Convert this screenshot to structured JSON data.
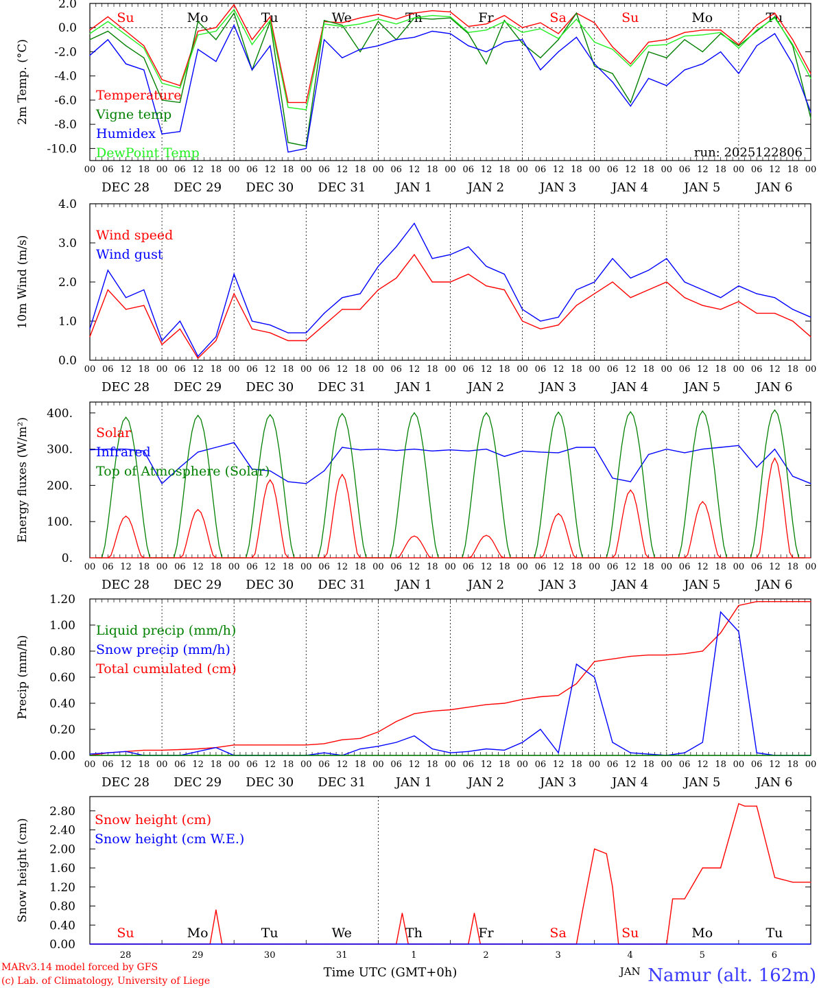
{
  "colors": {
    "red": "#ff0000",
    "green": "#008000",
    "blue": "#0000ff",
    "lightgreen": "#22ee22",
    "darkblue": "#0000b4",
    "titleblue": "#3a3aff"
  },
  "hour_ticks": [
    "00",
    "06",
    "12",
    "18"
  ],
  "end_tick": "00",
  "date_labels": [
    "DEC 28",
    "DEC 29",
    "DEC 30",
    "DEC 31",
    "JAN  1",
    "JAN  2",
    "JAN  3",
    "JAN  4",
    "JAN  5",
    "JAN  6"
  ],
  "bottom_days": [
    "28",
    "29",
    "30",
    "31",
    "1",
    "2",
    "3",
    "4",
    "5",
    "6"
  ],
  "bottom_month": "JAN",
  "weekdays": [
    {
      "label": "Su",
      "color": "red"
    },
    {
      "label": "Mo",
      "color": "black"
    },
    {
      "label": "Tu",
      "color": "black"
    },
    {
      "label": "We",
      "color": "black"
    },
    {
      "label": "Th",
      "color": "black"
    },
    {
      "label": "Fr",
      "color": "black"
    },
    {
      "label": "Sa",
      "color": "red"
    },
    {
      "label": "Su",
      "color": "red"
    },
    {
      "label": "Mo",
      "color": "black"
    },
    {
      "label": "Tu",
      "color": "black"
    }
  ],
  "footer": {
    "xlabel": "Time UTC (GMT+0h)",
    "credit1": "MARv3.14 model forced by GFS",
    "credit2": "(c) Lab. of Climatology, University of Liege",
    "station": "Namur (alt. 162m)"
  },
  "chart_data": [
    {
      "type": "line",
      "ylabel": "2m Temp. (°C)",
      "ylim": [
        -11,
        2
      ],
      "yticks": [
        "2.0",
        "0.0",
        "-2.0",
        "-4.0",
        "-6.0",
        "-8.0",
        "-10.0"
      ],
      "ytick_values": [
        2,
        0,
        -2,
        -4,
        -6,
        -8,
        -10
      ],
      "zero_line": true,
      "annotation": "run: 2025122806",
      "legend": [
        {
          "name": "Temperature",
          "color": "red"
        },
        {
          "name": "Vigne temp",
          "color": "green"
        },
        {
          "name": "Humidex",
          "color": "blue"
        },
        {
          "name": "DewPoint Temp",
          "color": "lightgreen"
        }
      ],
      "x_hours": [
        0,
        6,
        12,
        18,
        24,
        30,
        36,
        42,
        48,
        54,
        60,
        66,
        72,
        78,
        84,
        90,
        96,
        102,
        108,
        114,
        120,
        126,
        132,
        138,
        144,
        150,
        156,
        162,
        168,
        174,
        180,
        186,
        192,
        198,
        204,
        210,
        216,
        222,
        228,
        234,
        240
      ],
      "series": [
        {
          "name": "Temperature",
          "color": "red",
          "values": [
            -0.2,
            0.9,
            -0.3,
            -1.5,
            -4.3,
            -4.8,
            -0.3,
            0.0,
            1.9,
            -1.0,
            0.9,
            -6.2,
            -6.2,
            0.5,
            0.4,
            0.8,
            1.1,
            0.7,
            1.2,
            1.4,
            1.3,
            0.1,
            0.3,
            1.0,
            0.0,
            0.4,
            -0.5,
            1.2,
            0.4,
            -1.6,
            -3.0,
            -1.2,
            -1.0,
            -0.4,
            -0.2,
            -0.2,
            -1.4,
            0.2,
            1.2,
            -1.0,
            -3.8
          ]
        },
        {
          "name": "Vigne temp",
          "color": "green",
          "values": [
            -1.0,
            -0.3,
            -1.5,
            -2.5,
            -6.0,
            -6.2,
            0.5,
            -1.0,
            1.2,
            -3.5,
            0.5,
            -9.5,
            -9.8,
            0.6,
            0.2,
            -2.0,
            0.5,
            -1.0,
            0.8,
            0.7,
            0.8,
            -0.5,
            -3.0,
            0.6,
            -1.3,
            -2.5,
            -1.0,
            1.2,
            -3.2,
            -3.8,
            -6.2,
            -2.0,
            -2.5,
            -1.0,
            -2.0,
            -0.5,
            -1.5,
            -0.3,
            0.9,
            -1.5,
            -7.5
          ]
        },
        {
          "name": "Humidex",
          "color": "blue",
          "values": [
            -2.3,
            -1.0,
            -3.0,
            -3.5,
            -8.8,
            -8.6,
            -1.8,
            -2.8,
            0.2,
            -3.5,
            -1.5,
            -10.3,
            -10.0,
            -1.0,
            -2.5,
            -1.8,
            -1.5,
            -1.0,
            -0.8,
            -0.3,
            -0.5,
            -1.5,
            -2.0,
            -1.2,
            -1.0,
            -3.5,
            -2.0,
            -0.8,
            -3.0,
            -4.5,
            -6.5,
            -4.2,
            -4.8,
            -3.5,
            -3.0,
            -2.0,
            -3.8,
            -1.5,
            -0.5,
            -3.0,
            -7.0
          ]
        },
        {
          "name": "DewPoint Temp",
          "color": "lightgreen",
          "values": [
            -0.5,
            0.5,
            -0.6,
            -1.7,
            -4.6,
            -5.0,
            -0.6,
            -0.3,
            1.5,
            -1.4,
            0.6,
            -6.6,
            -6.8,
            0.3,
            0.1,
            0.3,
            0.7,
            0.3,
            0.8,
            1.0,
            0.9,
            -0.4,
            -0.2,
            0.5,
            -0.4,
            -0.1,
            -0.9,
            0.7,
            -1.2,
            -1.8,
            -3.2,
            -1.5,
            -1.4,
            -0.7,
            -0.6,
            -0.4,
            -1.7,
            -0.2,
            0.8,
            -1.4,
            -4.2
          ]
        }
      ]
    },
    {
      "type": "line",
      "ylabel": "10m Wind (m/s)",
      "ylim": [
        0,
        4
      ],
      "yticks": [
        "4.0",
        "3.0",
        "2.0",
        "1.0",
        "0.0"
      ],
      "ytick_values": [
        4,
        3,
        2,
        1,
        0
      ],
      "legend": [
        {
          "name": "Wind speed",
          "color": "red"
        },
        {
          "name": "Wind gust",
          "color": "blue"
        }
      ],
      "x_hours": [
        0,
        6,
        12,
        18,
        24,
        30,
        36,
        42,
        48,
        54,
        60,
        66,
        72,
        78,
        84,
        90,
        96,
        102,
        108,
        114,
        120,
        126,
        132,
        138,
        144,
        150,
        156,
        162,
        168,
        174,
        180,
        186,
        192,
        198,
        204,
        210,
        216,
        222,
        228,
        234,
        240
      ],
      "series": [
        {
          "name": "Wind speed",
          "color": "red",
          "values": [
            0.6,
            1.8,
            1.3,
            1.4,
            0.4,
            0.8,
            0.05,
            0.5,
            1.7,
            0.8,
            0.7,
            0.5,
            0.5,
            0.9,
            1.3,
            1.3,
            1.8,
            2.1,
            2.7,
            2.0,
            2.0,
            2.2,
            1.9,
            1.8,
            1.0,
            0.8,
            0.9,
            1.4,
            1.7,
            2.0,
            1.6,
            1.8,
            2.0,
            1.6,
            1.4,
            1.3,
            1.5,
            1.2,
            1.2,
            1.0,
            0.6
          ]
        },
        {
          "name": "Wind gust",
          "color": "blue",
          "values": [
            0.8,
            2.3,
            1.6,
            1.8,
            0.5,
            1.0,
            0.1,
            0.6,
            2.2,
            1.0,
            0.9,
            0.7,
            0.7,
            1.2,
            1.6,
            1.7,
            2.4,
            2.9,
            3.5,
            2.6,
            2.7,
            2.9,
            2.4,
            2.2,
            1.3,
            1.0,
            1.1,
            1.8,
            2.0,
            2.6,
            2.1,
            2.3,
            2.6,
            2.0,
            1.8,
            1.6,
            1.9,
            1.7,
            1.6,
            1.3,
            1.1
          ]
        }
      ]
    },
    {
      "type": "line",
      "ylabel": "Energy fluxes (W/m²)",
      "ylim": [
        0,
        430
      ],
      "yticks": [
        "400.",
        "300.",
        "200.",
        "100.",
        "0."
      ],
      "ytick_values": [
        400,
        300,
        200,
        100,
        0
      ],
      "legend": [
        {
          "name": "Solar",
          "color": "red"
        },
        {
          "name": "Infrared",
          "color": "blue"
        },
        {
          "name": "Top of Atmosphere (Solar)",
          "color": "green"
        }
      ],
      "daily_peaks": {
        "toa": [
          388,
          393,
          395,
          398,
          400,
          400,
          402,
          403,
          405,
          408
        ],
        "solar": [
          115,
          133,
          215,
          230,
          60,
          62,
          122,
          187,
          155,
          275
        ]
      },
      "x_hours": [
        0,
        6,
        12,
        18,
        24,
        30,
        36,
        42,
        48,
        54,
        60,
        66,
        72,
        78,
        84,
        90,
        96,
        102,
        108,
        114,
        120,
        126,
        132,
        138,
        144,
        150,
        156,
        162,
        168,
        174,
        180,
        186,
        192,
        198,
        204,
        210,
        216,
        222,
        228,
        234,
        240
      ],
      "series": [
        {
          "name": "Infrared",
          "color": "blue",
          "values": [
            298,
            300,
            300,
            295,
            205,
            250,
            292,
            305,
            318,
            245,
            240,
            210,
            205,
            240,
            305,
            298,
            300,
            296,
            300,
            295,
            298,
            295,
            300,
            280,
            295,
            292,
            290,
            305,
            305,
            220,
            210,
            285,
            300,
            290,
            300,
            305,
            310,
            250,
            300,
            225,
            205
          ]
        }
      ]
    },
    {
      "type": "line",
      "ylabel": "Precip (mm/h)",
      "ylim": [
        0,
        1.2
      ],
      "yticks": [
        "1.20",
        "1.00",
        "0.80",
        "0.60",
        "0.40",
        "0.20",
        "0.00"
      ],
      "ytick_values": [
        1.2,
        1.0,
        0.8,
        0.6,
        0.4,
        0.2,
        0.0
      ],
      "legend": [
        {
          "name": "Liquid precip (mm/h)",
          "color": "green"
        },
        {
          "name": "Snow precip (mm/h)",
          "color": "blue"
        },
        {
          "name": "Total cumulated (cm)",
          "color": "red"
        }
      ],
      "x_hours": [
        0,
        6,
        12,
        18,
        24,
        30,
        36,
        42,
        48,
        54,
        60,
        66,
        72,
        78,
        84,
        90,
        96,
        102,
        108,
        114,
        120,
        126,
        132,
        138,
        144,
        150,
        156,
        162,
        168,
        174,
        180,
        186,
        192,
        198,
        204,
        210,
        216,
        222,
        228,
        234,
        240
      ],
      "series": [
        {
          "name": "Total cumulated (cm)",
          "color": "red",
          "values": [
            0.0,
            0.02,
            0.03,
            0.04,
            0.04,
            0.045,
            0.05,
            0.06,
            0.08,
            0.08,
            0.08,
            0.08,
            0.08,
            0.09,
            0.12,
            0.13,
            0.18,
            0.26,
            0.32,
            0.34,
            0.35,
            0.37,
            0.39,
            0.4,
            0.43,
            0.45,
            0.46,
            0.55,
            0.72,
            0.74,
            0.76,
            0.77,
            0.77,
            0.78,
            0.8,
            0.94,
            1.15,
            1.18,
            1.18,
            1.18,
            1.18
          ]
        },
        {
          "name": "Snow precip (mm/h)",
          "color": "blue",
          "values": [
            0.01,
            0.02,
            0.03,
            0.0,
            0.0,
            0.0,
            0.03,
            0.06,
            0.0,
            0.0,
            0.0,
            0.0,
            0.0,
            0.02,
            0.0,
            0.05,
            0.07,
            0.1,
            0.15,
            0.05,
            0.02,
            0.03,
            0.05,
            0.04,
            0.1,
            0.2,
            0.02,
            0.7,
            0.6,
            0.1,
            0.02,
            0.01,
            0.0,
            0.02,
            0.1,
            1.1,
            0.95,
            0.02,
            0.0,
            0.0,
            0.0
          ]
        },
        {
          "name": "Liquid precip (mm/h)",
          "color": "green",
          "values": [
            0,
            0,
            0,
            0,
            0,
            0,
            0,
            0,
            0,
            0,
            0,
            0,
            0,
            0,
            0,
            0,
            0,
            0,
            0,
            0,
            0,
            0,
            0,
            0,
            0,
            0,
            0,
            0,
            0,
            0,
            0,
            0,
            0,
            0,
            0,
            0,
            0,
            0,
            0,
            0,
            0
          ]
        }
      ]
    },
    {
      "type": "line",
      "ylabel": "Snow height (cm)",
      "ylim": [
        0,
        3.1
      ],
      "yticks": [
        "2.80",
        "2.40",
        "2.00",
        "1.60",
        "1.20",
        "0.80",
        "0.40",
        "0.00"
      ],
      "ytick_values": [
        2.8,
        2.4,
        2.0,
        1.6,
        1.2,
        0.8,
        0.4,
        0.0
      ],
      "legend": [
        {
          "name": "Snow height (cm)",
          "color": "red"
        },
        {
          "name": "Snow height (cm W.E.)",
          "color": "blue"
        }
      ],
      "x_hours": [
        0,
        6,
        12,
        18,
        24,
        30,
        36,
        40,
        42,
        44,
        48,
        54,
        60,
        66,
        72,
        78,
        84,
        90,
        96,
        102,
        104,
        106,
        108,
        114,
        120,
        126,
        128,
        130,
        132,
        138,
        144,
        150,
        156,
        162,
        164,
        166,
        168,
        172,
        174,
        176,
        180,
        186,
        192,
        194,
        198,
        204,
        210,
        216,
        218,
        222,
        228,
        234,
        240
      ],
      "series": [
        {
          "name": "Snow height (cm)",
          "color": "red",
          "values": [
            0,
            0,
            0,
            0,
            0,
            0,
            0,
            0,
            0.72,
            0,
            0,
            0,
            0,
            0,
            0,
            0,
            0,
            0,
            0,
            0,
            0.65,
            0,
            0,
            0,
            0,
            0,
            0.65,
            0,
            0,
            0,
            0,
            0,
            0,
            0,
            0.7,
            1.35,
            2.0,
            1.9,
            1.2,
            0,
            0,
            0,
            0,
            0.95,
            0.95,
            1.6,
            1.6,
            2.95,
            2.9,
            2.9,
            1.4,
            1.3,
            1.3
          ]
        },
        {
          "name": "Snow height (cm W.E.)",
          "color": "blue",
          "values": [
            0,
            0,
            0,
            0,
            0,
            0,
            0,
            0,
            0,
            0,
            0,
            0,
            0,
            0,
            0,
            0,
            0,
            0,
            0,
            0,
            0,
            0,
            0,
            0,
            0,
            0,
            0,
            0,
            0,
            0,
            0,
            0,
            0,
            0,
            0,
            0,
            0,
            0,
            0,
            0,
            0,
            0,
            0,
            0,
            0,
            0,
            0,
            0,
            0,
            0,
            0,
            0,
            0
          ]
        }
      ]
    }
  ]
}
